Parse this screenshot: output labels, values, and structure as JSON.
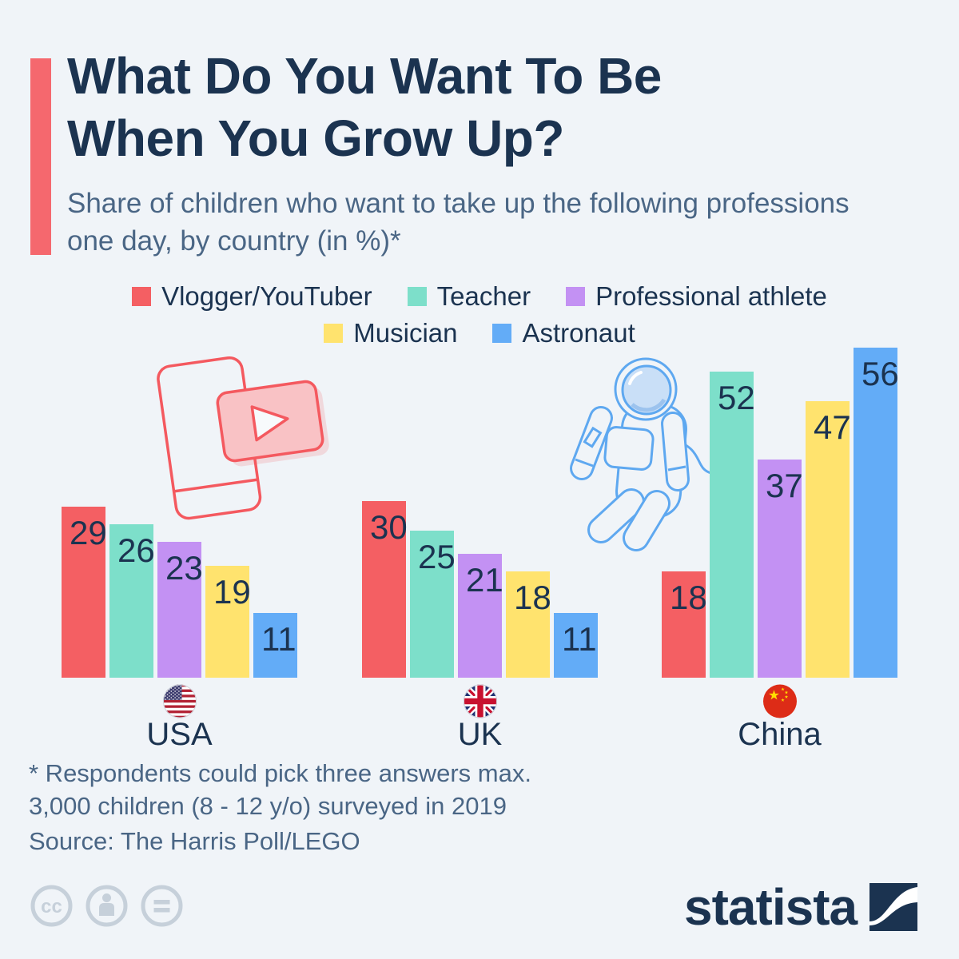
{
  "header": {
    "title": "What Do You Want To Be When You Grow Up?",
    "subtitle": "Share of children who want to take up the following professions one day, by country (in %)*"
  },
  "legend": {
    "items": [
      {
        "label": "Vlogger/YouTuber",
        "color": "#f45f63"
      },
      {
        "label": "Teacher",
        "color": "#7ddfca"
      },
      {
        "label": "Professional athlete",
        "color": "#c391f3"
      },
      {
        "label": "Musician",
        "color": "#ffe36e"
      },
      {
        "label": "Astronaut",
        "color": "#63acf7"
      }
    ]
  },
  "chart_data": {
    "type": "bar",
    "unit": "%",
    "title": "What Do You Want To Be When You Grow Up?",
    "categories": [
      "Vlogger/YouTuber",
      "Teacher",
      "Professional athlete",
      "Musician",
      "Astronaut"
    ],
    "series_colors": [
      "#f45f63",
      "#7ddfca",
      "#c391f3",
      "#ffe36e",
      "#63acf7"
    ],
    "groups": [
      {
        "country": "USA",
        "flag_icon": "usa-flag-icon",
        "values": [
          29,
          26,
          23,
          19,
          11
        ]
      },
      {
        "country": "UK",
        "flag_icon": "uk-flag-icon",
        "values": [
          30,
          25,
          21,
          18,
          11
        ]
      },
      {
        "country": "China",
        "flag_icon": "china-flag-icon",
        "values": [
          18,
          52,
          37,
          47,
          56
        ]
      }
    ],
    "value_labels_shown": true,
    "ylim": [
      0,
      60
    ],
    "grid": false,
    "legend_position": "top"
  },
  "footnotes": {
    "line1": "* Respondents could pick three answers max.",
    "line2": "3,000 children (8 - 12 y/o) surveyed in 2019",
    "line3": "Source: The Harris Poll/LEGO"
  },
  "branding": {
    "logo_text": "statista",
    "logo_icon": "statista-logo-mark"
  },
  "icons": {
    "license": [
      "cc-icon",
      "attribution-person-icon",
      "no-derivatives-icon"
    ],
    "illustrations": [
      "youtube-phone-illustration",
      "astronaut-illustration"
    ]
  },
  "colors": {
    "background": "#f0f4f8",
    "accent_red": "#f5686e",
    "navy": "#1b3350",
    "slate": "#4a6685",
    "license_grey": "#c6d0da"
  }
}
